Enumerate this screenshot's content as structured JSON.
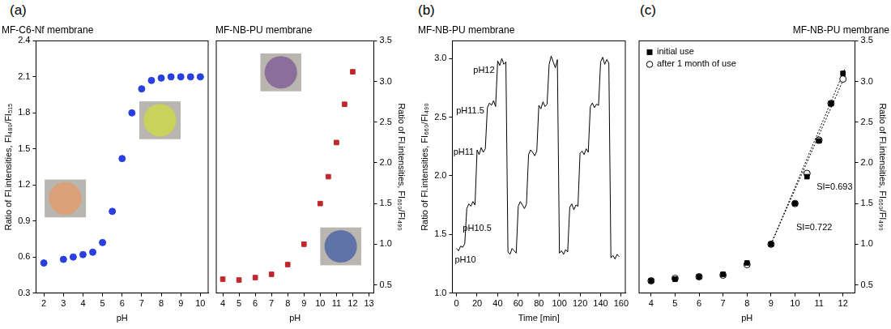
{
  "panel_labels": [
    "(a)",
    "(b)",
    "(c)"
  ],
  "chart_data": [
    {
      "type": "scatter",
      "title": "MF-C6-Nf membrane",
      "xlabel": "pH",
      "ylabel": "Ratio of Fl.intensities, FI₄₈₀/FI₅₁₅",
      "x": [
        2,
        3,
        3.5,
        4,
        4.5,
        5,
        5.5,
        6,
        6.5,
        7,
        7.5,
        8,
        8.5,
        9,
        9.5,
        10
      ],
      "values": [
        0.55,
        0.58,
        0.6,
        0.62,
        0.64,
        0.72,
        0.98,
        1.42,
        1.8,
        2.0,
        2.07,
        2.09,
        2.1,
        2.1,
        2.1,
        2.1
      ],
      "color": "#2a3fe0",
      "marker": "circle",
      "xlim": [
        1.6,
        10.4
      ],
      "xticks": [
        2,
        3,
        4,
        5,
        6,
        7,
        8,
        9,
        10
      ],
      "ylim": [
        0.3,
        2.4
      ],
      "yticks": [
        0.3,
        0.6,
        0.9,
        1.2,
        1.5,
        1.8,
        2.1,
        2.4
      ],
      "grid": false
    },
    {
      "type": "scatter",
      "title": "MF-NB-PU membrane",
      "xlabel": "pH",
      "y2label": "Ratio of Fl.intensities, FI₆₆₀/FI₄₉₀",
      "series": [
        {
          "axis": "y2",
          "color": "#c0272d",
          "marker": "square",
          "x": [
            4,
            5,
            6,
            7,
            8,
            9,
            10,
            10.5,
            11,
            11.5,
            12
          ],
          "values": [
            0.57,
            0.56,
            0.59,
            0.63,
            0.75,
            1.0,
            1.5,
            1.83,
            2.25,
            2.72,
            3.12
          ]
        }
      ],
      "xlim": [
        3.6,
        13.3
      ],
      "xticks": [
        4,
        5,
        6,
        7,
        8,
        9,
        10,
        11,
        12,
        13
      ],
      "y2lim": [
        0.4,
        3.5
      ],
      "y2ticks": [
        0.5,
        {
          "value": 1,
          "label": "1.0"
        },
        1.5,
        {
          "value": 2,
          "label": "2.0"
        },
        2.5,
        {
          "value": 3,
          "label": "3.0"
        },
        3.5
      ],
      "grid": false
    },
    {
      "type": "line",
      "title": "MF-NB-PU membrane",
      "xlabel": "Time [min]",
      "ylabel": "Ratio of Fl.intensities, FI₆₆₀/FI₄₉₀",
      "x": [
        0,
        2,
        4,
        6,
        8,
        10,
        12,
        14,
        16,
        18,
        20,
        22,
        24,
        26,
        28,
        30,
        32,
        34,
        36,
        38,
        40,
        42,
        44,
        46,
        48,
        50,
        52,
        54,
        56,
        58,
        60,
        62,
        64,
        66,
        68,
        70,
        72,
        74,
        76,
        78,
        80,
        82,
        84,
        86,
        88,
        90,
        92,
        94,
        96,
        98,
        100,
        102,
        104,
        106,
        108,
        110,
        112,
        114,
        116,
        118,
        120,
        122,
        124,
        126,
        128,
        130,
        132,
        134,
        136,
        138,
        140,
        142,
        144,
        146,
        148,
        150,
        152,
        154,
        156,
        158
      ],
      "values": [
        1.38,
        1.36,
        1.4,
        1.39,
        1.42,
        1.72,
        1.76,
        1.74,
        1.78,
        1.75,
        2.22,
        2.18,
        2.24,
        2.2,
        2.23,
        2.58,
        2.62,
        2.6,
        2.64,
        2.59,
        2.98,
        2.94,
        3.0,
        2.95,
        2.97,
        1.35,
        1.33,
        1.38,
        1.36,
        1.34,
        1.74,
        1.78,
        1.75,
        1.72,
        1.76,
        2.18,
        2.22,
        2.2,
        2.17,
        2.21,
        2.6,
        2.57,
        2.63,
        2.59,
        2.61,
        2.95,
        3.02,
        2.97,
        2.92,
        2.99,
        1.34,
        1.36,
        1.33,
        1.37,
        1.35,
        1.73,
        1.76,
        1.71,
        1.75,
        1.74,
        2.19,
        2.21,
        2.18,
        2.23,
        2.2,
        2.59,
        2.62,
        2.58,
        2.61,
        2.6,
        2.97,
        3.01,
        2.95,
        2.99,
        2.96,
        1.3,
        1.32,
        1.29,
        1.33,
        1.31
      ],
      "color": "#000000",
      "line_style": "solid",
      "xlim": [
        -4,
        164
      ],
      "xticks": [
        0,
        20,
        40,
        60,
        80,
        100,
        120,
        140,
        160
      ],
      "ylim": [
        1.0,
        3.15
      ],
      "yticks": [
        {
          "value": 1,
          "label": "1.0"
        },
        1.5,
        {
          "value": 2,
          "label": "2.0"
        },
        2.5,
        {
          "value": 3,
          "label": "3.0"
        }
      ],
      "annotations": [
        {
          "text": "pH12",
          "x": 37,
          "y": 2.9
        },
        {
          "text": "pH11.5",
          "x": 27,
          "y": 2.55
        },
        {
          "text": "pH11",
          "x": 17,
          "y": 2.2
        },
        {
          "text": "pH10.5",
          "x": 34,
          "y": 1.55
        },
        {
          "text": "pH10",
          "x": 19,
          "y": 1.28
        }
      ],
      "grid": false
    },
    {
      "type": "scatter",
      "title": "MF-NB-PU membrane",
      "xlabel": "pH",
      "y2label": "Ratio of Fl.intensities, FI₆₆₀/FI₄₉₀",
      "legend": "upper left",
      "series": [
        {
          "name": "initial use",
          "axis": "y2",
          "color": "#000000",
          "marker": "square",
          "x": [
            4,
            5,
            6,
            7,
            8,
            9,
            10,
            10.5,
            11,
            11.5,
            12
          ],
          "values": [
            0.55,
            0.57,
            0.6,
            0.63,
            0.77,
            1.0,
            1.5,
            1.83,
            2.27,
            2.73,
            3.1
          ]
        },
        {
          "name": "after 1 month of use",
          "axis": "y2",
          "color": "#000000",
          "marker": "open_circle",
          "x": [
            4,
            5,
            6,
            7,
            8,
            9,
            10,
            10.5,
            11,
            11.5,
            12
          ],
          "values": [
            0.55,
            0.58,
            0.6,
            0.62,
            0.75,
            1.0,
            1.5,
            1.87,
            2.28,
            2.73,
            3.03
          ]
        },
        {
          "type": "line",
          "line_style": "dotted",
          "axis": "y2",
          "color": "#000000",
          "x": [
            9,
            12.1
          ],
          "values": [
            1.0,
            3.17
          ]
        },
        {
          "type": "line",
          "line_style": "dotted",
          "axis": "y2",
          "color": "#000000",
          "x": [
            9,
            12.1
          ],
          "values": [
            1.0,
            3.08
          ]
        }
      ],
      "xlim": [
        3.5,
        12.5
      ],
      "xticks": [
        4,
        5,
        6,
        7,
        8,
        9,
        10,
        11,
        12
      ],
      "y2lim": [
        0.4,
        3.5
      ],
      "y2ticks": [
        0.5,
        {
          "value": 1,
          "label": "1.0"
        },
        1.5,
        {
          "value": 2,
          "label": "2.0"
        },
        2.5,
        {
          "value": 3,
          "label": "3.0"
        },
        3.5
      ],
      "annotations": [
        {
          "text": "SI=0.693",
          "x": 12.4,
          "y": 1.7
        },
        {
          "text": "SI=0.722",
          "x": 11.55,
          "y": 1.2
        }
      ],
      "grid": false
    }
  ]
}
